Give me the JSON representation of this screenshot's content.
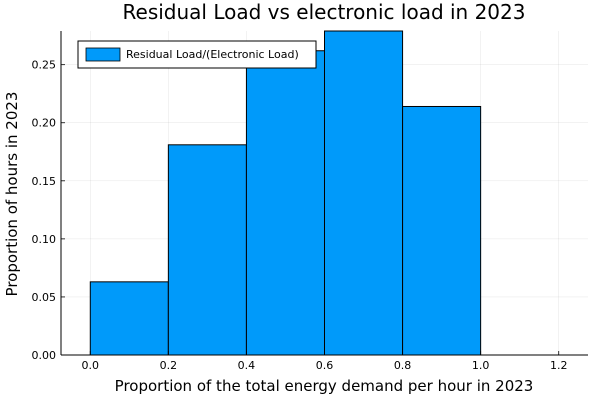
{
  "chart_data": {
    "type": "bar",
    "title": "Residual Load vs electronic load in 2023",
    "xlabel": "Proportion of the total energy demand per hour in 2023",
    "ylabel": "Proportion of hours in 2023",
    "bins": [
      {
        "x0": 0.0,
        "x1": 0.2,
        "value": 0.063
      },
      {
        "x0": 0.2,
        "x1": 0.4,
        "value": 0.181
      },
      {
        "x0": 0.4,
        "x1": 0.6,
        "value": 0.262
      },
      {
        "x0": 0.6,
        "x1": 0.8,
        "value": 0.279
      },
      {
        "x0": 0.8,
        "x1": 1.0,
        "value": 0.214
      }
    ],
    "xlim": [
      -0.075,
      1.275
    ],
    "ylim": [
      0,
      0.279
    ],
    "xticks": [
      "0.0",
      "0.2",
      "0.4",
      "0.6",
      "0.8",
      "1.0",
      "1.2"
    ],
    "yticks": [
      "0.00",
      "0.05",
      "0.10",
      "0.15",
      "0.20",
      "0.25"
    ],
    "series": [
      {
        "name": "Residual Load/(Electronic Load)",
        "color": "#009AFA"
      }
    ],
    "grid": true,
    "legend": "top-left"
  }
}
